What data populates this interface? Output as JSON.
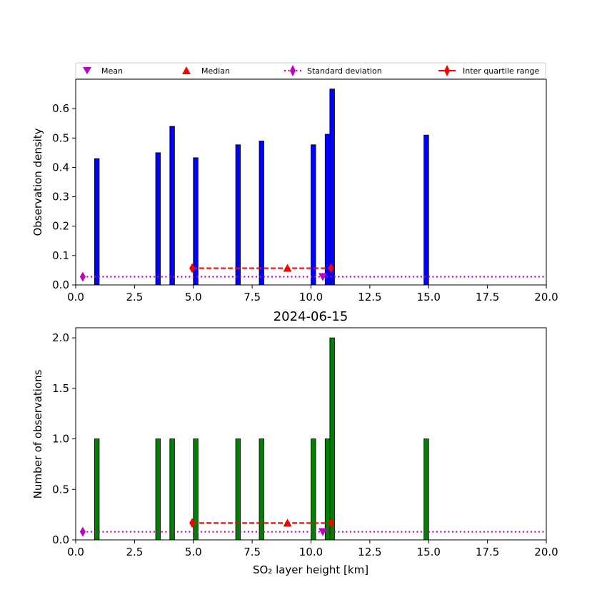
{
  "chart_data": [
    {
      "type": "bar",
      "title": "",
      "xlabel": "",
      "ylabel": "Observation density",
      "xlim": [
        0,
        20
      ],
      "ylim": [
        0,
        0.7
      ],
      "xticks": [
        "0.0",
        "2.5",
        "5.0",
        "7.5",
        "10.0",
        "12.5",
        "15.0",
        "17.5",
        "20.0"
      ],
      "yticks": [
        "0.0",
        "0.1",
        "0.2",
        "0.3",
        "0.4",
        "0.5",
        "0.6"
      ],
      "bar_color": "#0000ff",
      "bars": [
        {
          "x": 0.9,
          "value": 0.43
        },
        {
          "x": 3.5,
          "value": 0.45
        },
        {
          "x": 4.1,
          "value": 0.54
        },
        {
          "x": 5.1,
          "value": 0.433
        },
        {
          "x": 6.9,
          "value": 0.477
        },
        {
          "x": 7.9,
          "value": 0.49
        },
        {
          "x": 10.1,
          "value": 0.477
        },
        {
          "x": 10.7,
          "value": 0.513
        },
        {
          "x": 10.9,
          "value": 0.667
        },
        {
          "x": 14.9,
          "value": 0.51
        }
      ],
      "stats": {
        "mean": {
          "x": 10.5,
          "y": 0.028
        },
        "median": {
          "x": 9.0,
          "y": 0.057
        },
        "std_line": {
          "x": [
            0.3,
            20
          ],
          "y": 0.028
        },
        "iqr": {
          "x": [
            4.95,
            10.85
          ],
          "y": 0.057
        }
      },
      "legend": {
        "placement": "top",
        "entries": [
          "Mean",
          "Median",
          "Standard deviation",
          "Inter quartile range"
        ]
      }
    },
    {
      "type": "bar",
      "title": "2024-06-15",
      "xlabel": "SO₂ layer height [km]",
      "ylabel": "Number of observations",
      "xlim": [
        0,
        20
      ],
      "ylim": [
        0,
        2.1
      ],
      "xticks": [
        "0.0",
        "2.5",
        "5.0",
        "7.5",
        "10.0",
        "12.5",
        "15.0",
        "17.5",
        "20.0"
      ],
      "yticks": [
        "0.0",
        "0.5",
        "1.0",
        "1.5",
        "2.0"
      ],
      "bar_color": "#008000",
      "bars": [
        {
          "x": 0.9,
          "value": 1
        },
        {
          "x": 3.5,
          "value": 1
        },
        {
          "x": 4.1,
          "value": 1
        },
        {
          "x": 5.1,
          "value": 1
        },
        {
          "x": 6.9,
          "value": 1
        },
        {
          "x": 7.9,
          "value": 1
        },
        {
          "x": 10.1,
          "value": 1
        },
        {
          "x": 10.7,
          "value": 1
        },
        {
          "x": 10.9,
          "value": 2
        },
        {
          "x": 14.9,
          "value": 1
        }
      ],
      "stats": {
        "mean": {
          "x": 10.5,
          "y": 0.08
        },
        "median": {
          "x": 9.0,
          "y": 0.167
        },
        "std_line": {
          "x": [
            0.3,
            20
          ],
          "y": 0.08
        },
        "iqr": {
          "x": [
            4.95,
            10.85
          ],
          "y": 0.167
        }
      }
    }
  ],
  "colors": {
    "mean": "#bf00bf",
    "median": "#ff0000",
    "std": "#bf00bf",
    "iqr": "#ff0000"
  }
}
